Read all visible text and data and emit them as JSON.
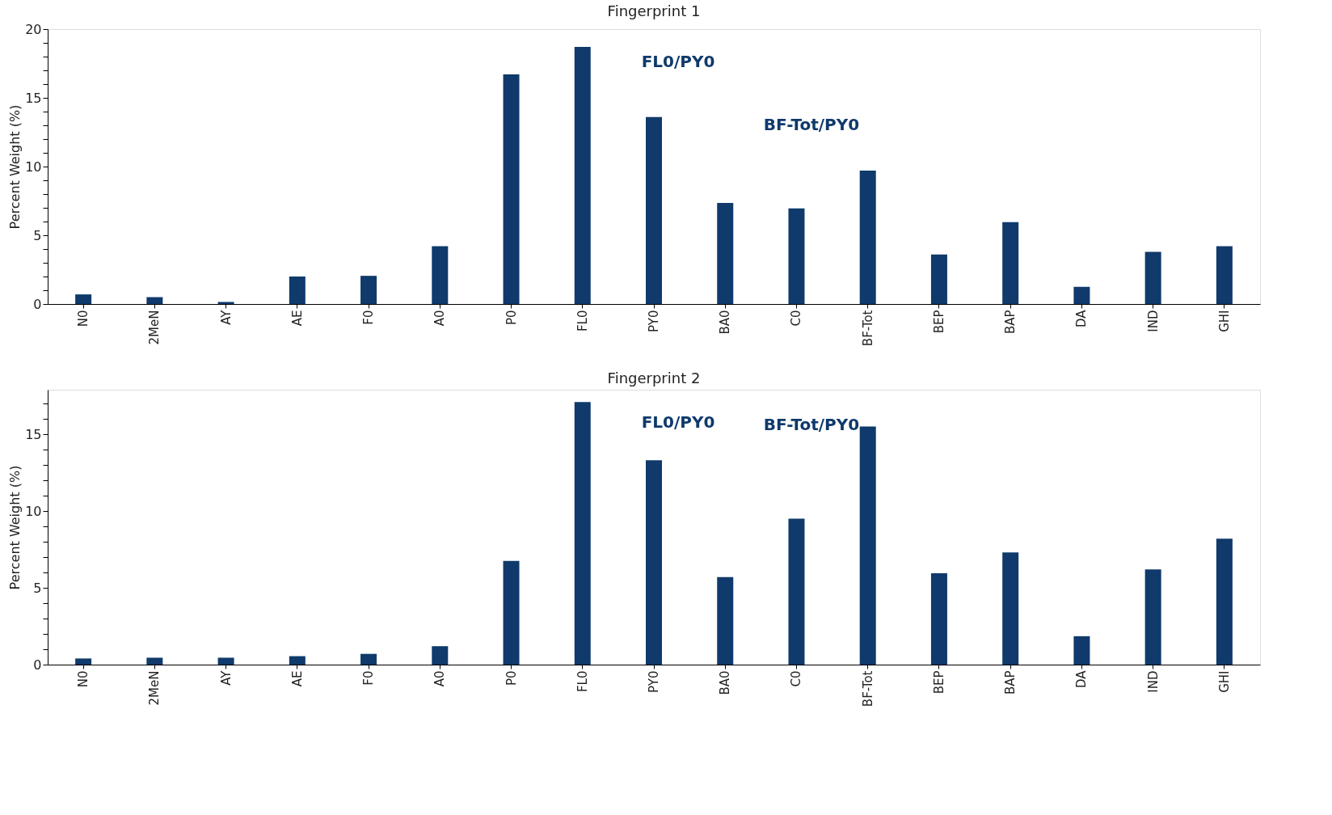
{
  "chart_data": [
    {
      "type": "bar",
      "title": "Fingerprint 1",
      "ylabel": "Percent Weight (%)",
      "categories": [
        "N0",
        "2MeN",
        "AY",
        "AE",
        "F0",
        "A0",
        "P0",
        "FL0",
        "PY0",
        "BA0",
        "C0",
        "BF-Tot",
        "BEP",
        "BAP",
        "DA",
        "IND",
        "GHI"
      ],
      "series": [
        {
          "color": "#0f3a6b",
          "values": [
            0.7,
            0.5,
            0.15,
            2.0,
            2.05,
            4.2,
            16.7,
            18.7,
            13.6,
            7.35,
            6.95,
            9.7,
            3.6,
            5.95,
            1.25,
            3.8,
            4.2
          ]
        }
      ],
      "ylim": [
        0,
        20
      ],
      "yticks": [
        0,
        {
          "value": 1,
          "label": null
        },
        {
          "value": 2,
          "label": null
        },
        {
          "value": 3,
          "label": null
        },
        {
          "value": 4,
          "label": null
        },
        5,
        {
          "value": 6,
          "label": null
        },
        {
          "value": 7,
          "label": null
        },
        {
          "value": 8,
          "label": null
        },
        {
          "value": 9,
          "label": null
        },
        10,
        {
          "value": 11,
          "label": null
        },
        {
          "value": 12,
          "label": null
        },
        {
          "value": 13,
          "label": null
        },
        {
          "value": 14,
          "label": null
        },
        15,
        {
          "value": 16,
          "label": null
        },
        {
          "value": 17,
          "label": null
        },
        {
          "value": 18,
          "label": null
        },
        {
          "value": 19,
          "label": null
        },
        20
      ],
      "annotations": [
        "FL0/PY0",
        "BF-Tot/PY0"
      ],
      "grid": false
    },
    {
      "type": "bar",
      "title": "Fingerprint 2",
      "ylabel": "Percent Weight (%)",
      "categories": [
        "N0",
        "2MeN",
        "AY",
        "AE",
        "F0",
        "A0",
        "P0",
        "FL0",
        "PY0",
        "BA0",
        "C0",
        "BF-Tot",
        "BEP",
        "BAP",
        "DA",
        "IND",
        "GHI"
      ],
      "series": [
        {
          "color": "#0f3a6b",
          "values": [
            0.4,
            0.45,
            0.45,
            0.55,
            0.7,
            1.2,
            6.75,
            17.1,
            13.3,
            5.7,
            9.5,
            15.5,
            5.95,
            7.3,
            1.85,
            6.2,
            8.2
          ]
        }
      ],
      "ylim": [
        0,
        17.9
      ],
      "yticks": [
        0,
        {
          "value": 1,
          "label": null
        },
        {
          "value": 2,
          "label": null
        },
        {
          "value": 3,
          "label": null
        },
        {
          "value": 4,
          "label": null
        },
        5,
        {
          "value": 6,
          "label": null
        },
        {
          "value": 7,
          "label": null
        },
        {
          "value": 8,
          "label": null
        },
        {
          "value": 9,
          "label": null
        },
        10,
        {
          "value": 11,
          "label": null
        },
        {
          "value": 12,
          "label": null
        },
        {
          "value": 13,
          "label": null
        },
        {
          "value": 14,
          "label": null
        },
        15,
        {
          "value": 16,
          "label": null
        },
        {
          "value": 17,
          "label": null
        }
      ],
      "annotations": [
        "FL0/PY0",
        "BF-Tot/PY0"
      ],
      "grid": false
    }
  ]
}
